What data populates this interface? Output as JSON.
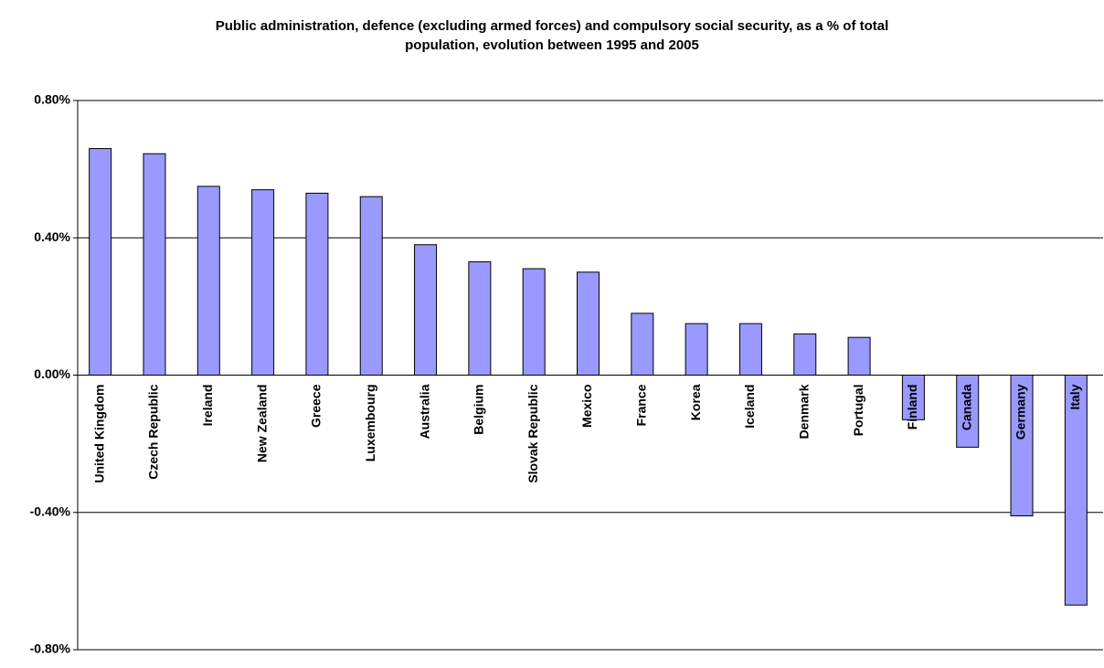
{
  "chart_data": {
    "type": "bar",
    "title": "Public administration, defence (excluding armed forces) and compulsory social security, as a % of total population, evolution between 1995 and 2005",
    "categories": [
      "United Kingdom",
      "Czech Republic",
      "Ireland",
      "New Zealand",
      "Greece",
      "Luxembourg",
      "Australia",
      "Belgium",
      "Slovak Republic",
      "Mexico",
      "France",
      "Korea",
      "Iceland",
      "Denmark",
      "Portugal",
      "Finland",
      "Canada",
      "Germany",
      "Italy"
    ],
    "values": [
      0.66,
      0.645,
      0.55,
      0.54,
      0.53,
      0.52,
      0.38,
      0.33,
      0.31,
      0.3,
      0.18,
      0.15,
      0.15,
      0.12,
      0.11,
      -0.13,
      -0.21,
      -0.41,
      -0.67
    ],
    "color": "#9999ff",
    "ylim": [
      -0.8,
      0.8
    ],
    "yticks": [
      {
        "value": -0.8,
        "label": "-0.80%"
      },
      {
        "value": -0.4,
        "label": "-0.40%"
      },
      {
        "value": 0,
        "label": "0.00%"
      },
      {
        "value": 0.4,
        "label": "0.40%"
      },
      {
        "value": 0.8,
        "label": "0.80%"
      }
    ],
    "grid": true
  }
}
